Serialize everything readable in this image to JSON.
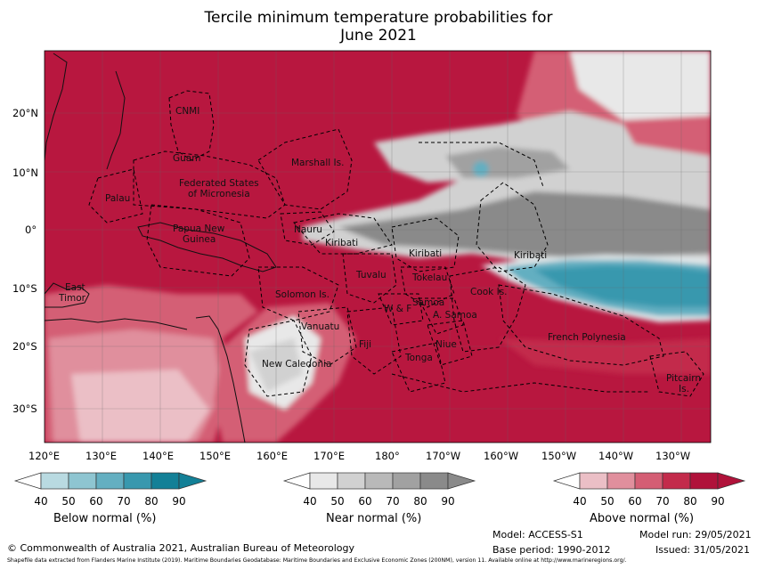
{
  "title_line1": "Tercile minimum temperature probabilities for",
  "title_line2": "June 2021",
  "lat_ticks": [
    "20°N",
    "10°N",
    "0°",
    "10°S",
    "20°S",
    "30°S"
  ],
  "lon_ticks": [
    "120°E",
    "130°E",
    "140°E",
    "150°E",
    "160°E",
    "170°E",
    "180°",
    "170°W",
    "160°W",
    "150°W",
    "140°W",
    "130°W"
  ],
  "regions": {
    "cnmi": "CNMI",
    "guam": "Guam",
    "palau": "Palau",
    "fsm_1": "Federated States",
    "fsm_2": "of Micronesia",
    "marshall": "Marshall Is.",
    "png_1": "Papua New",
    "png_2": "Guinea",
    "nauru": "Nauru",
    "kiribati_w": "Kiribati",
    "kiribati_c": "Kiribati",
    "kiribati_e": "Kiribati",
    "tuvalu": "Tuvalu",
    "tokelau": "Tokelau",
    "timor_1": "East",
    "timor_2": "Timor",
    "solomon": "Solomon Is.",
    "wf": "W & F",
    "samoa": "Samoa",
    "asamoa": "A. Samoa",
    "cook": "Cook Is.",
    "vanuatu": "Vanuatu",
    "fiji": "Fiji",
    "niue": "Niue",
    "tonga": "Tonga",
    "frpoly": "French Polynesia",
    "newcal": "New Caledonia",
    "pitcairn_1": "Pitcairn",
    "pitcairn_2": "Is."
  },
  "legend": {
    "below": {
      "label": "Below normal (%)",
      "ticks": [
        "40",
        "50",
        "60",
        "70",
        "80",
        "90"
      ],
      "colors": [
        "#ffffff",
        "#b9dae1",
        "#8ec5d1",
        "#64afc1",
        "#3898ae",
        "#138097"
      ]
    },
    "near": {
      "label": "Near normal (%)",
      "ticks": [
        "40",
        "50",
        "60",
        "70",
        "80",
        "90"
      ],
      "colors": [
        "#ffffff",
        "#e8e8e8",
        "#d1d1d1",
        "#b9b9b9",
        "#a1a1a1",
        "#8a8a8a"
      ]
    },
    "above": {
      "label": "Above normal (%)",
      "ticks": [
        "40",
        "50",
        "60",
        "70",
        "80",
        "90"
      ],
      "colors": [
        "#ffffff",
        "#ebbfc6",
        "#e08f9d",
        "#d45e74",
        "#c32b4b",
        "#b0123a"
      ]
    }
  },
  "footer": {
    "copyright": "© Commonwealth of Australia 2021, Australian Bureau of Meteorology",
    "model": "Model: ACCESS-S1",
    "model_run": "Model run: 29/05/2021",
    "base_period": "Base period: 1990-2012",
    "issued": "Issued: 31/05/2021",
    "shapefile": "Shapefile data extracted from Flanders Marine Institute (2019). Maritime Boundaries Geodatabase: Maritime Boundaries and Exclusive Economic Zones (200NM), version 11. Available online at http://www.marineregions.org/."
  }
}
